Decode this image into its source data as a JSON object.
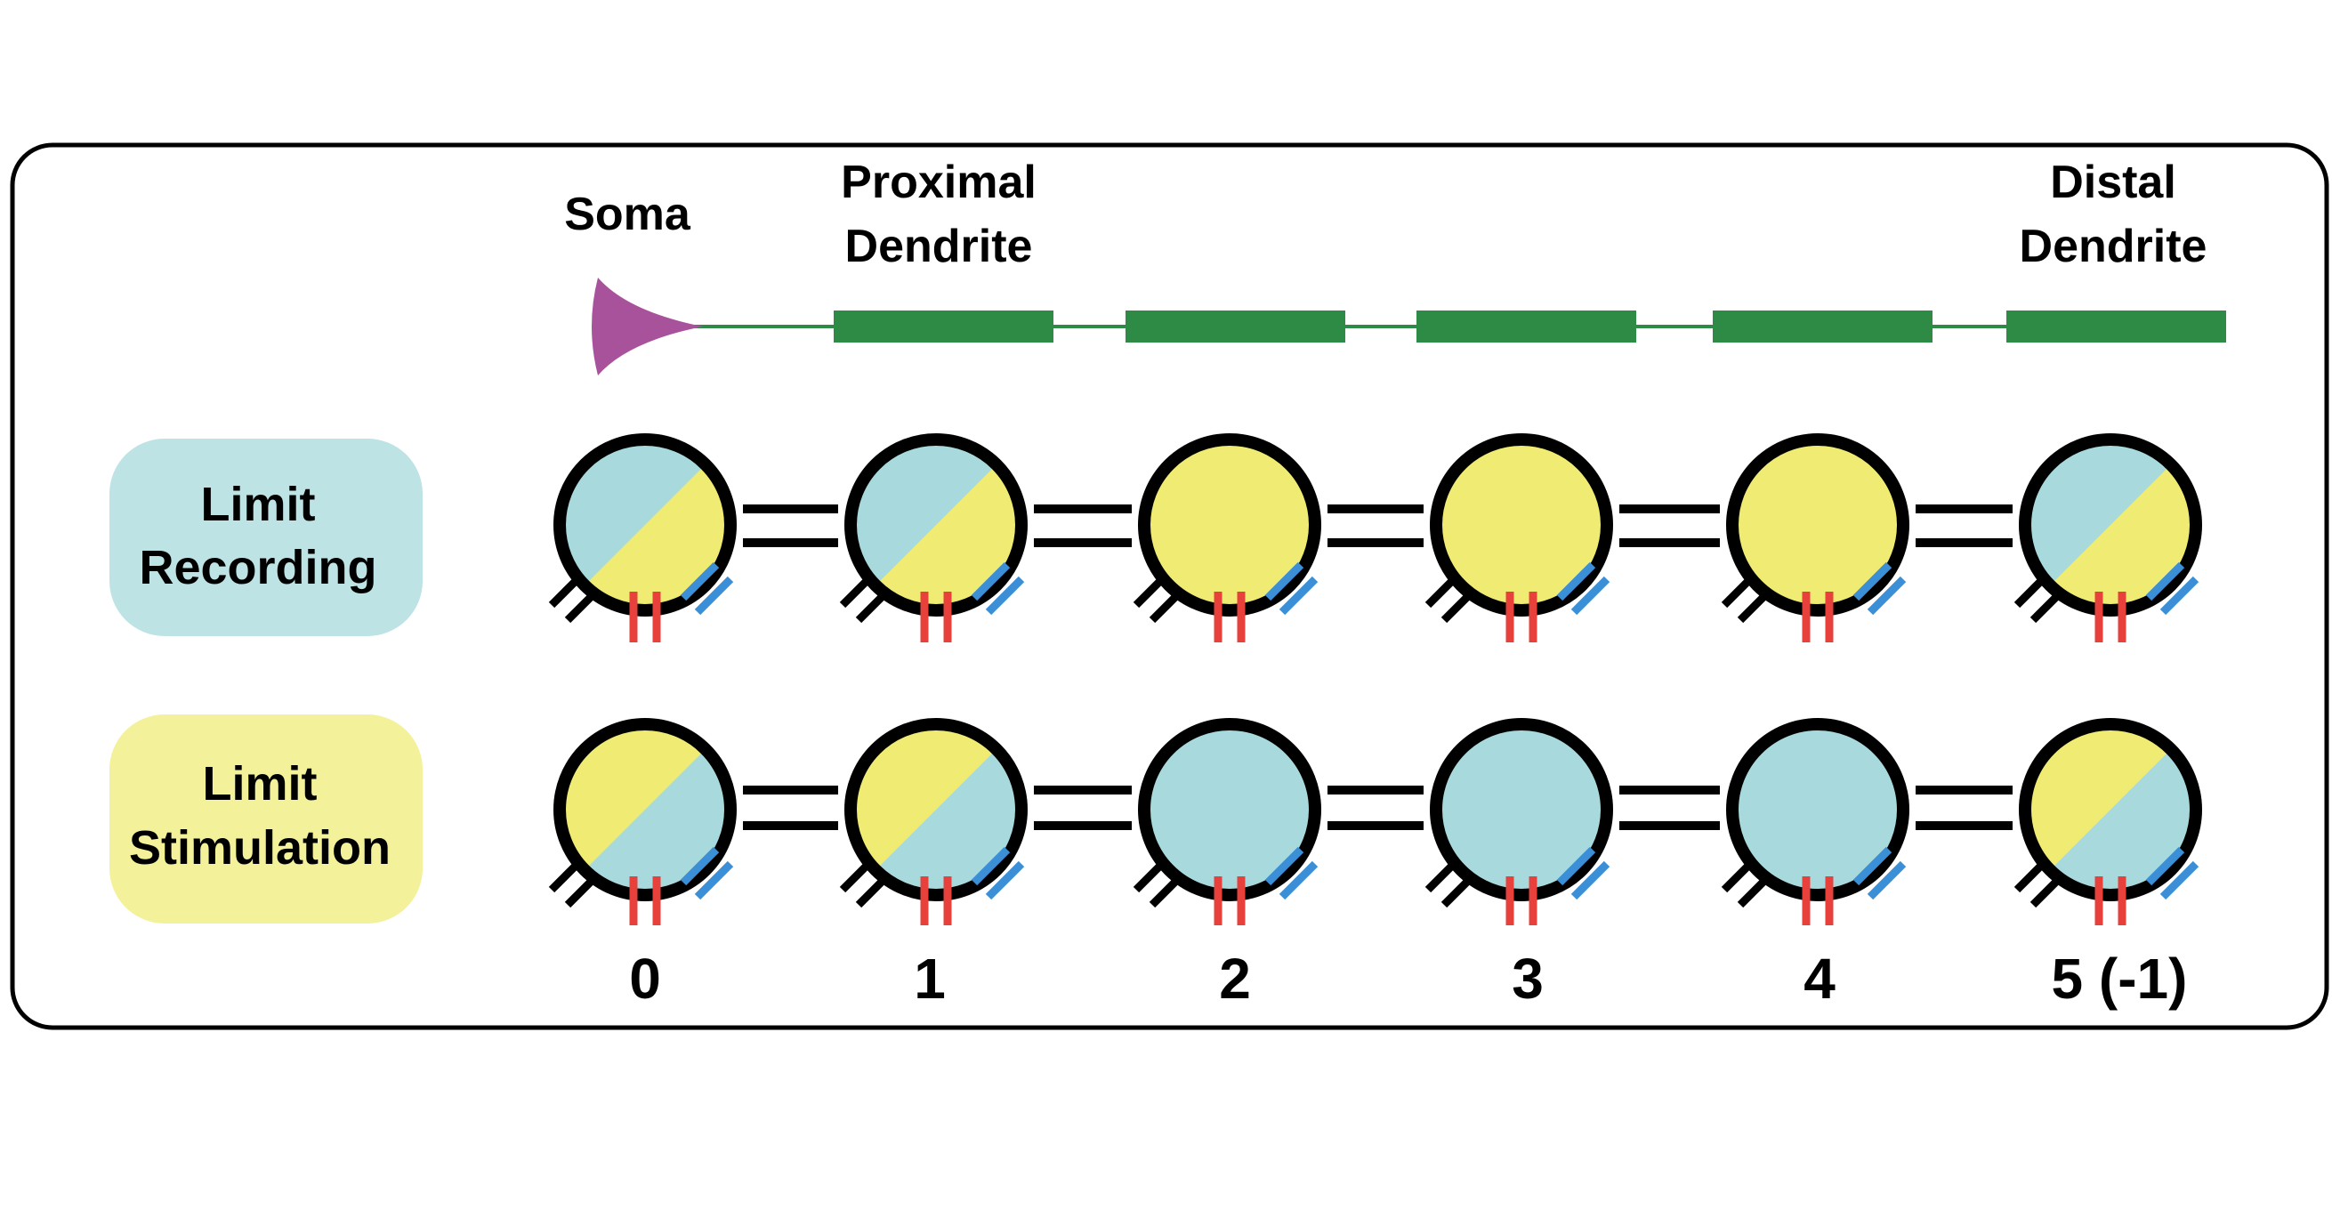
{
  "labels": {
    "soma": "Soma",
    "proximal_line1": "Proximal",
    "proximal_line2": "Dendrite",
    "distal_line1": "Distal",
    "distal_line2": "Dendrite"
  },
  "rows": [
    {
      "name": "recording",
      "label_line1": "Limit",
      "label_line2": "Recording",
      "label_color": "#bde3e5",
      "nodes": [
        "half",
        "half",
        "full",
        "full",
        "full",
        "half"
      ]
    },
    {
      "name": "stimulation",
      "label_line1": "Limit",
      "label_line2": "Stimulation",
      "label_color": "#f3f19a",
      "nodes": [
        "half",
        "half",
        "full",
        "full",
        "full",
        "half"
      ]
    }
  ],
  "node_indices": [
    "0",
    "1",
    "2",
    "3",
    "4",
    "5 (-1)"
  ],
  "colors": {
    "cyan": "#a8d9dc",
    "yellow": "#efeb73",
    "soma": "#a9529c",
    "dendrite": "#2e8b46",
    "red_mark": "#e8413c",
    "blue_mark": "#3a8fd6",
    "outline": "#000000"
  }
}
